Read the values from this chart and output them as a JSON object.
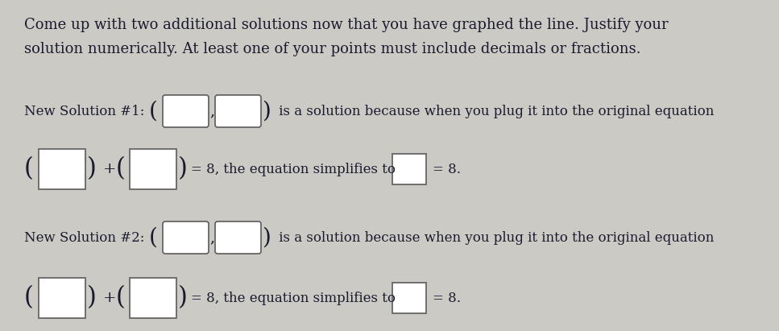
{
  "background_color": "#cccac4",
  "text_color": "#1a1a2e",
  "title_text_line1": "Come up with two additional solutions now that you have graphed the line. Justify your",
  "title_text_line2": "solution numerically. At least one of your points must include decimals or fractions.",
  "sol1_label": "New Solution #1: ",
  "sol1_suffix": " is a solution because when you plug it into the original equation",
  "sol2_label": "New Solution #2: ",
  "sol2_suffix": " is a solution because when you plug it into the original equation",
  "eq_middle": "= 8, the equation simplifies to",
  "eq_end": "= 8.",
  "box_color": "#ffffff",
  "box_edge_color": "#666666",
  "font_size_title": 13.0,
  "font_size_body": 12.0,
  "font_family": "DejaVu Serif"
}
